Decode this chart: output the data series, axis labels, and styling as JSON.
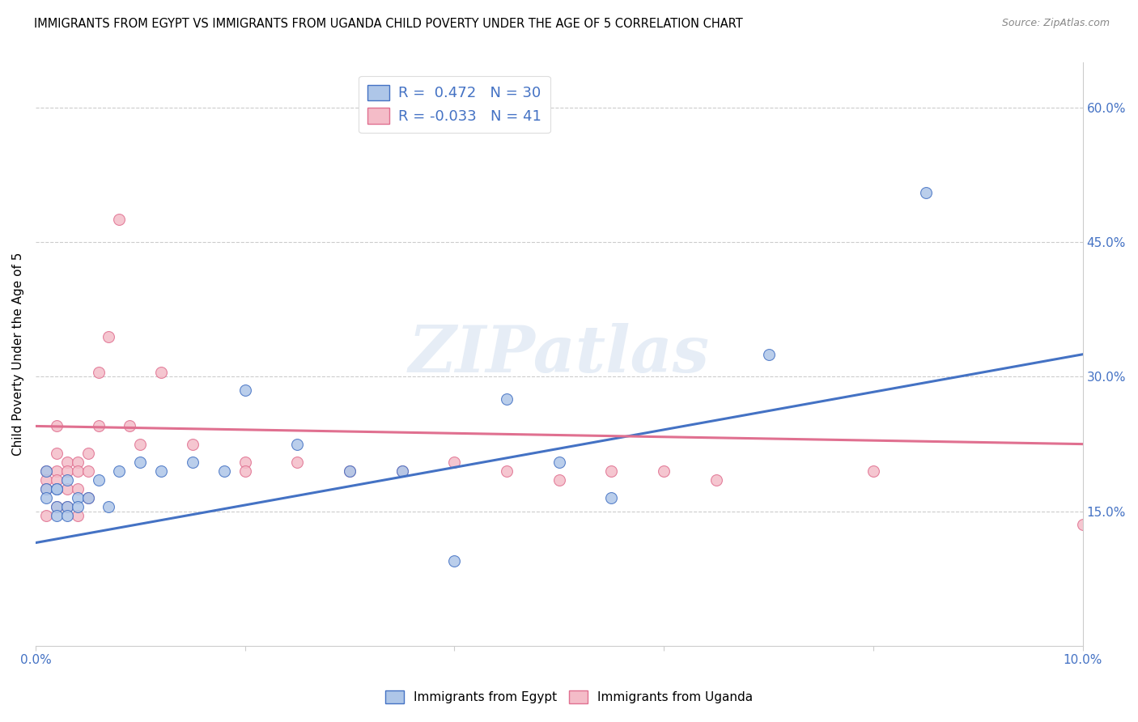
{
  "title": "IMMIGRANTS FROM EGYPT VS IMMIGRANTS FROM UGANDA CHILD POVERTY UNDER THE AGE OF 5 CORRELATION CHART",
  "source": "Source: ZipAtlas.com",
  "ylabel": "Child Poverty Under the Age of 5",
  "xlim": [
    0.0,
    0.1
  ],
  "ylim": [
    0.0,
    0.65
  ],
  "x_ticks": [
    0.0,
    0.02,
    0.04,
    0.06,
    0.08,
    0.1
  ],
  "x_tick_labels": [
    "0.0%",
    "",
    "",
    "",
    "",
    "10.0%"
  ],
  "y_ticks_right": [
    0.15,
    0.3,
    0.45,
    0.6
  ],
  "y_tick_labels_right": [
    "15.0%",
    "30.0%",
    "45.0%",
    "60.0%"
  ],
  "color_egypt": "#aec6e8",
  "color_uganda": "#f4bcc8",
  "color_egypt_line": "#4472c4",
  "color_uganda_line": "#e07090",
  "color_axis_labels": "#4472c4",
  "watermark": "ZIPatlas",
  "egypt_R": 0.472,
  "egypt_N": 30,
  "uganda_R": -0.033,
  "uganda_N": 41,
  "egypt_points_x": [
    0.001,
    0.001,
    0.001,
    0.002,
    0.002,
    0.002,
    0.002,
    0.003,
    0.003,
    0.003,
    0.004,
    0.004,
    0.005,
    0.006,
    0.007,
    0.008,
    0.01,
    0.012,
    0.015,
    0.018,
    0.02,
    0.025,
    0.03,
    0.035,
    0.04,
    0.045,
    0.05,
    0.055,
    0.07,
    0.085
  ],
  "egypt_points_y": [
    0.195,
    0.175,
    0.165,
    0.175,
    0.155,
    0.145,
    0.175,
    0.185,
    0.155,
    0.145,
    0.165,
    0.155,
    0.165,
    0.185,
    0.155,
    0.195,
    0.205,
    0.195,
    0.205,
    0.195,
    0.285,
    0.225,
    0.195,
    0.195,
    0.095,
    0.275,
    0.205,
    0.165,
    0.325,
    0.505
  ],
  "uganda_points_x": [
    0.001,
    0.001,
    0.001,
    0.001,
    0.002,
    0.002,
    0.002,
    0.002,
    0.002,
    0.003,
    0.003,
    0.003,
    0.003,
    0.004,
    0.004,
    0.004,
    0.004,
    0.005,
    0.005,
    0.005,
    0.006,
    0.006,
    0.007,
    0.008,
    0.009,
    0.01,
    0.012,
    0.015,
    0.02,
    0.02,
    0.025,
    0.03,
    0.035,
    0.04,
    0.045,
    0.05,
    0.055,
    0.06,
    0.065,
    0.08,
    0.1
  ],
  "uganda_points_y": [
    0.195,
    0.185,
    0.175,
    0.145,
    0.245,
    0.215,
    0.195,
    0.185,
    0.155,
    0.205,
    0.195,
    0.175,
    0.155,
    0.205,
    0.195,
    0.175,
    0.145,
    0.215,
    0.195,
    0.165,
    0.305,
    0.245,
    0.345,
    0.475,
    0.245,
    0.225,
    0.305,
    0.225,
    0.205,
    0.195,
    0.205,
    0.195,
    0.195,
    0.205,
    0.195,
    0.185,
    0.195,
    0.195,
    0.185,
    0.195,
    0.135
  ],
  "egypt_line_x0": 0.0,
  "egypt_line_y0": 0.115,
  "egypt_line_x1": 0.1,
  "egypt_line_y1": 0.325,
  "uganda_line_x0": 0.0,
  "uganda_line_y0": 0.245,
  "uganda_line_x1": 0.1,
  "uganda_line_y1": 0.225
}
